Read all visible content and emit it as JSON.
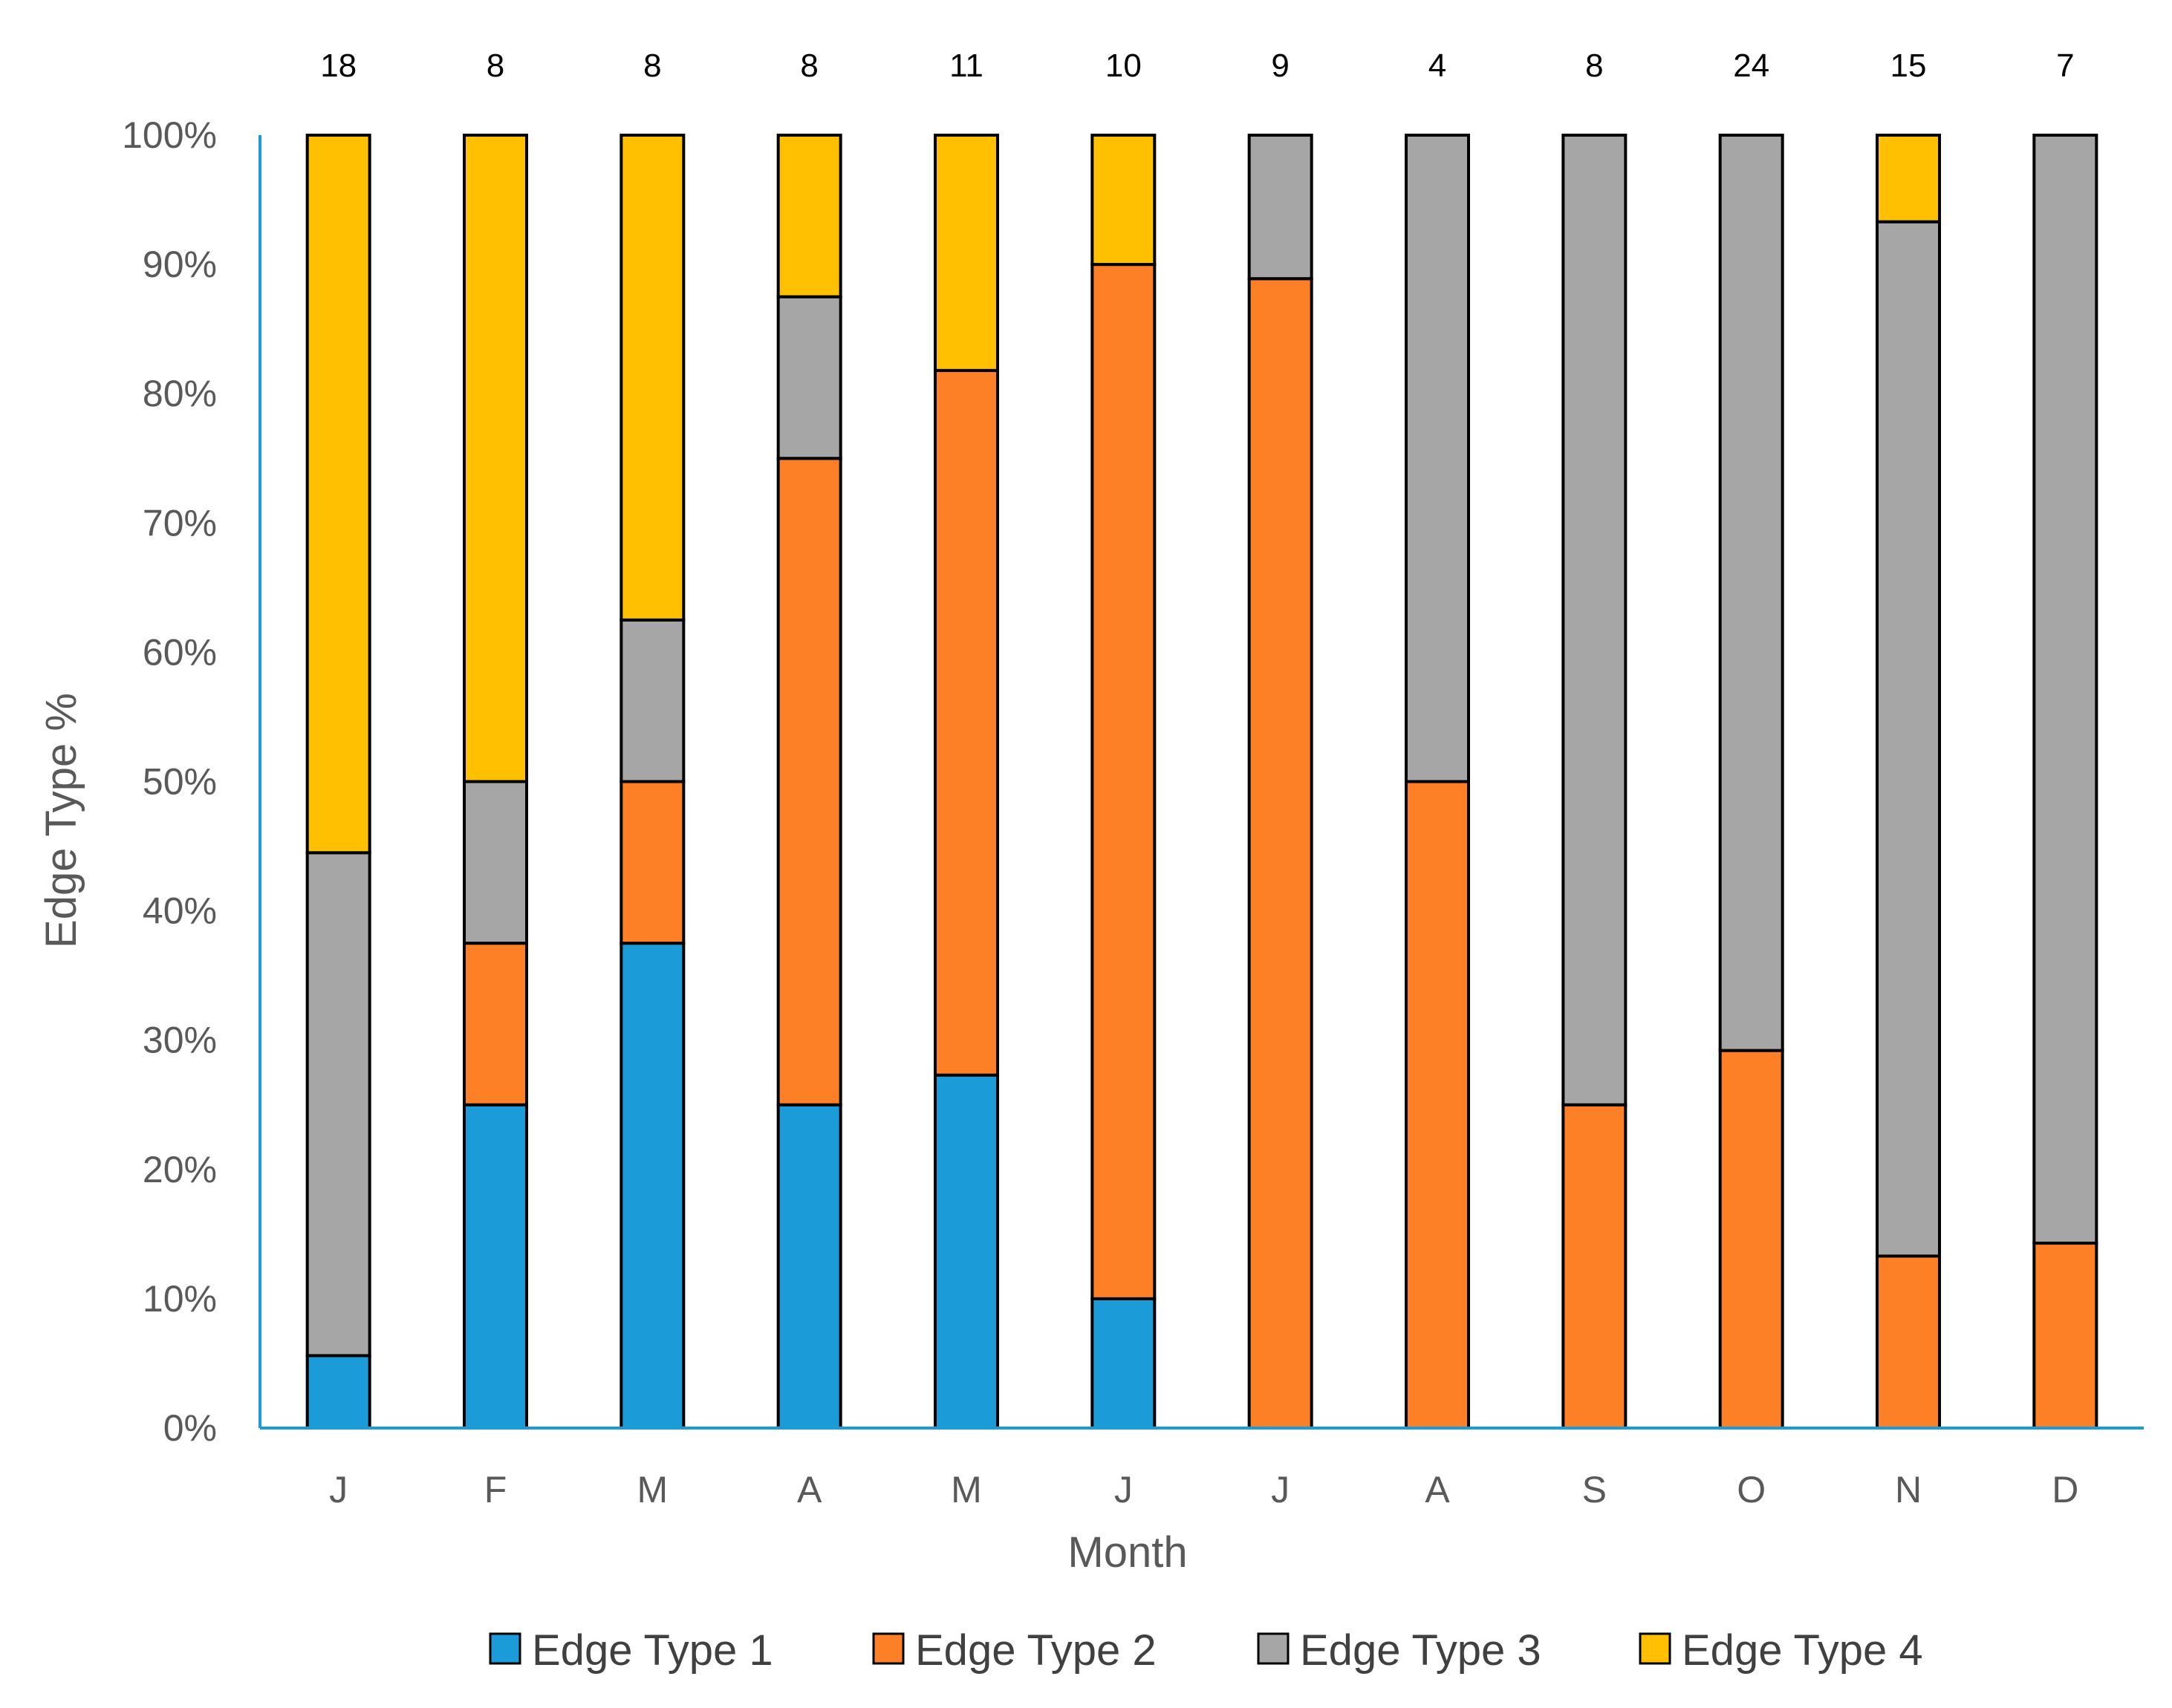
{
  "chart_data": {
    "type": "bar",
    "stacked": true,
    "percent": true,
    "title": "",
    "xlabel": "Month",
    "ylabel": "Edge Type %",
    "ylim": [
      0,
      100
    ],
    "yticks": [
      "0%",
      "10%",
      "20%",
      "30%",
      "40%",
      "50%",
      "60%",
      "70%",
      "80%",
      "90%",
      "100%"
    ],
    "categories": [
      "J",
      "F",
      "M",
      "A",
      "M",
      "J",
      "J",
      "A",
      "S",
      "O",
      "N",
      "D"
    ],
    "counts": [
      "18",
      "8",
      "8",
      "8",
      "11",
      "10",
      "9",
      "4",
      "8",
      "24",
      "15",
      "7"
    ],
    "legend_position": "bottom",
    "series": [
      {
        "name": "Edge Type 1",
        "color": "#1b9cd8",
        "values": [
          5.6,
          25,
          37.5,
          25,
          27.3,
          10,
          0,
          0,
          0,
          0,
          0,
          0
        ]
      },
      {
        "name": "Edge Type 2",
        "color": "#fd7f26",
        "values": [
          0,
          12.5,
          12.5,
          50,
          54.5,
          80,
          88.9,
          50,
          25,
          29.2,
          13.3,
          14.3
        ]
      },
      {
        "name": "Edge Type 3",
        "color": "#a6a6a6",
        "values": [
          38.9,
          12.5,
          12.5,
          12.5,
          0,
          0,
          11.1,
          50,
          75,
          70.8,
          80,
          85.7
        ]
      },
      {
        "name": "Edge Type 4",
        "color": "#fec000",
        "values": [
          55.5,
          50,
          37.5,
          12.5,
          18.2,
          10,
          0,
          0,
          0,
          0,
          6.7,
          0
        ]
      }
    ],
    "axis_color": "#1b9cd8",
    "grid": false
  }
}
